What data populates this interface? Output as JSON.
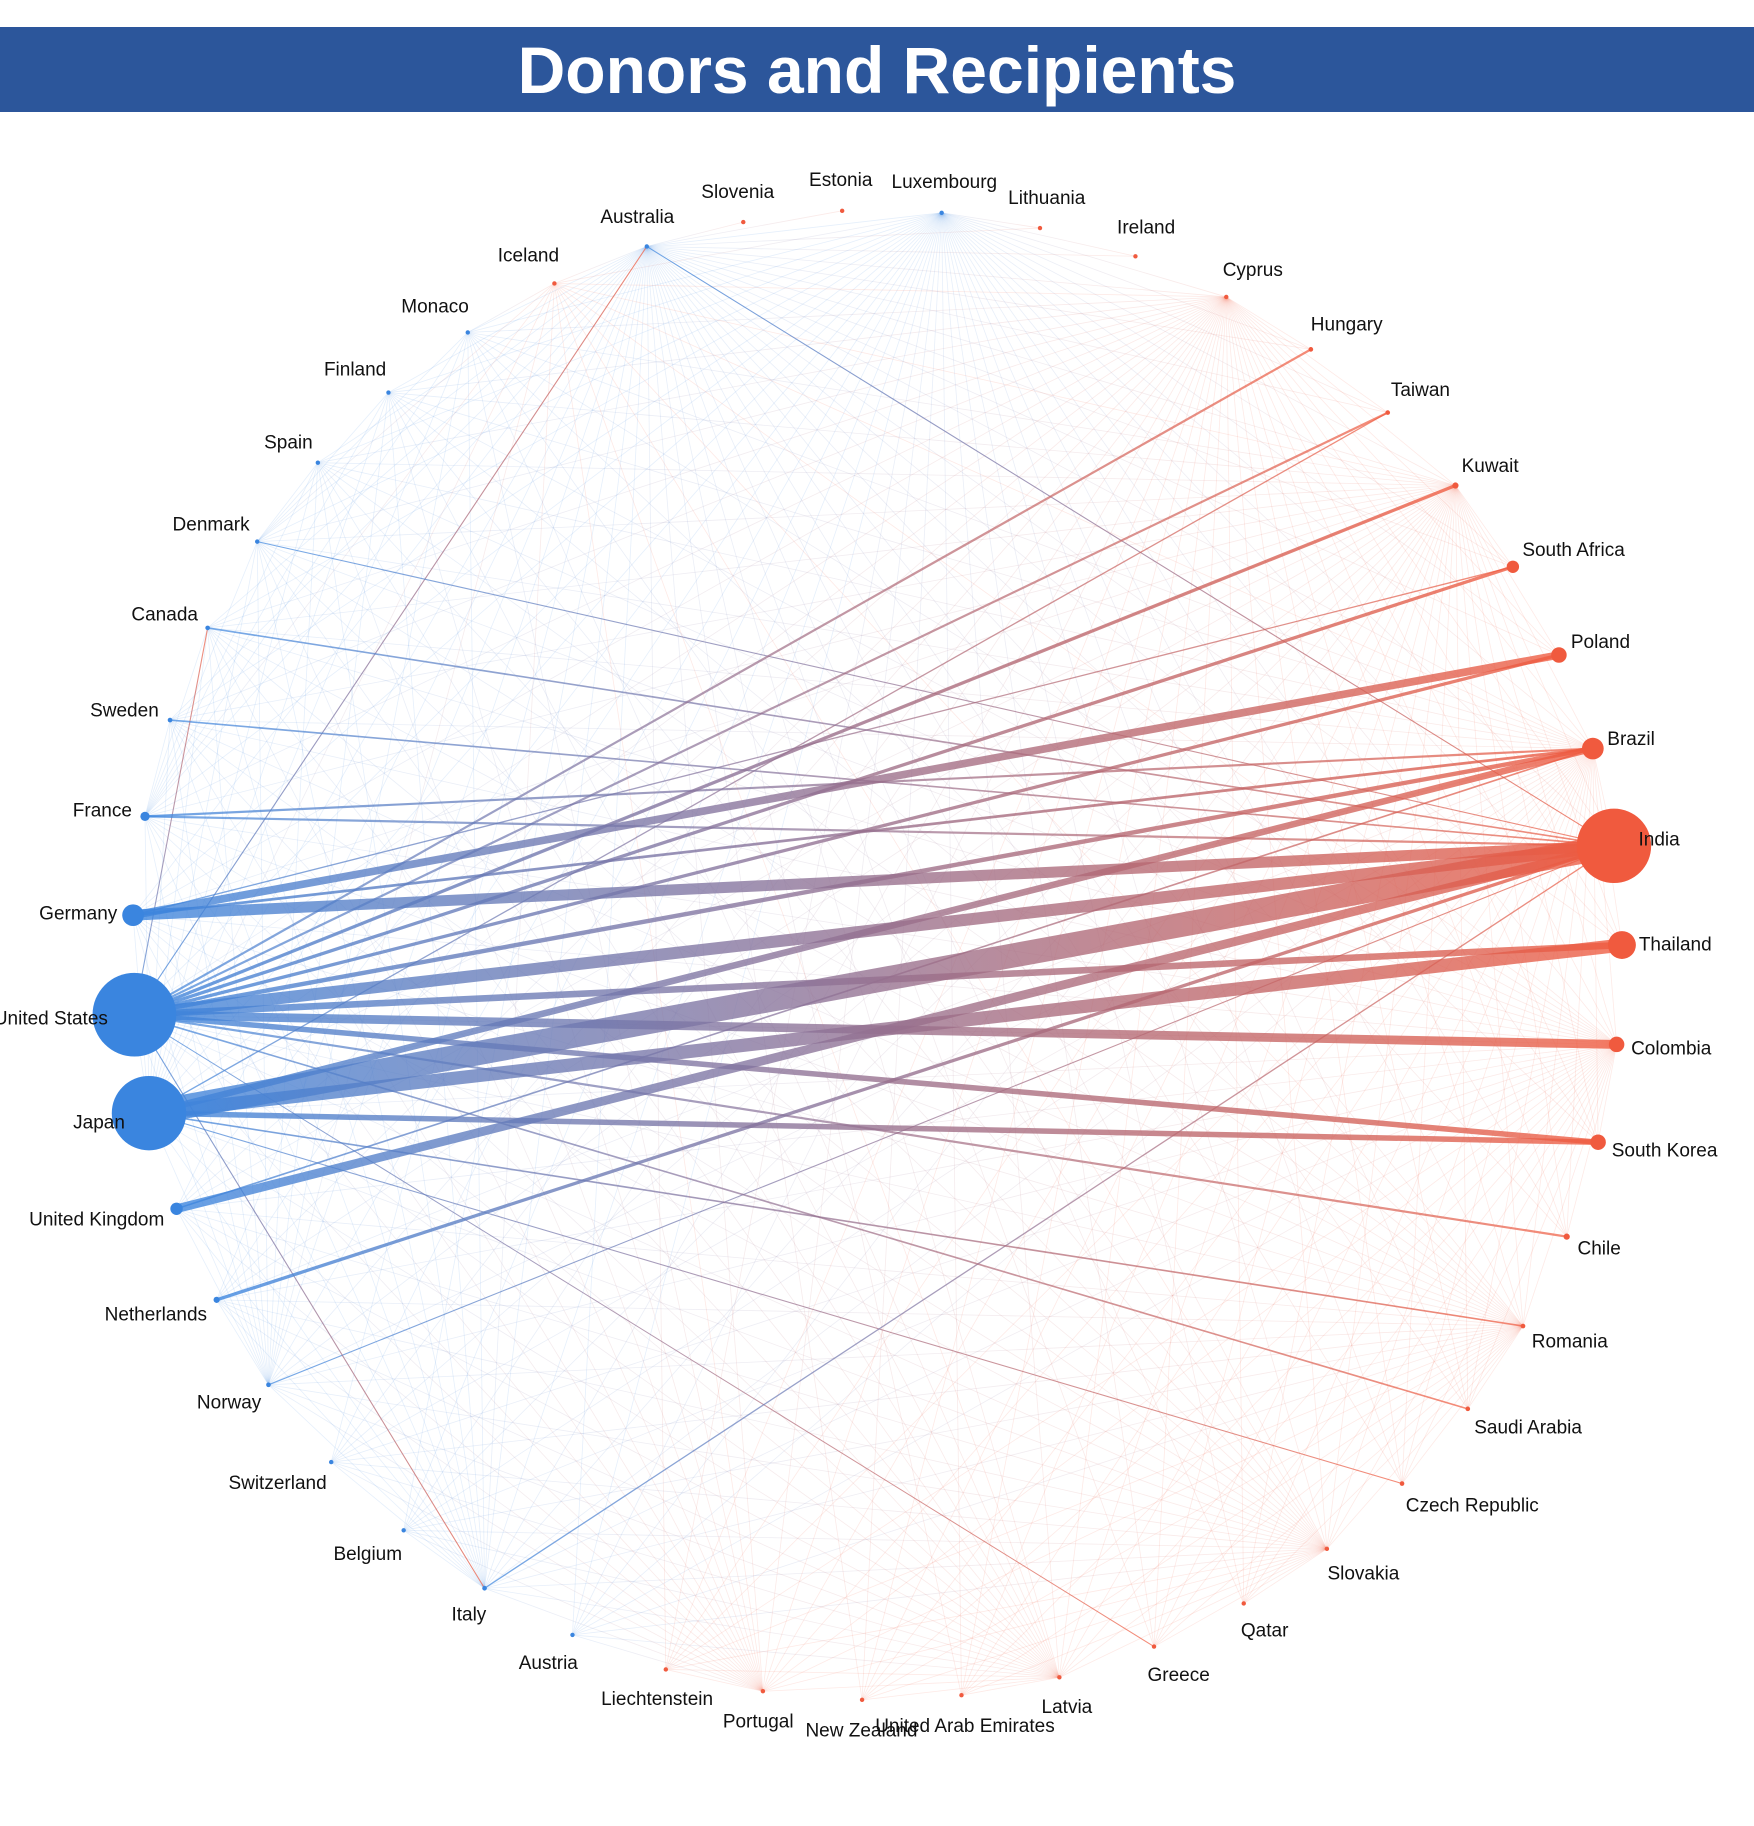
{
  "title": "Donors and Recipients",
  "colors": {
    "title_background": "#2c569b",
    "title_text": "#ffffff",
    "donor": "#3a85df",
    "recipient": "#f05a3e",
    "edge_mid": "#7f5f91"
  },
  "nodes": [
    {
      "id": "australia",
      "label": "Australia",
      "type": "donor",
      "size": 1
    },
    {
      "id": "slovenia",
      "label": "Slovenia",
      "type": "recipient",
      "size": 1
    },
    {
      "id": "estonia",
      "label": "Estonia",
      "type": "recipient",
      "size": 1
    },
    {
      "id": "luxembourg",
      "label": "Luxembourg",
      "type": "donor",
      "size": 1
    },
    {
      "id": "lithuania",
      "label": "Lithuania",
      "type": "recipient",
      "size": 1
    },
    {
      "id": "ireland",
      "label": "Ireland",
      "type": "recipient",
      "size": 1
    },
    {
      "id": "cyprus",
      "label": "Cyprus",
      "type": "recipient",
      "size": 1
    },
    {
      "id": "hungary",
      "label": "Hungary",
      "type": "recipient",
      "size": 1.5
    },
    {
      "id": "taiwan",
      "label": "Taiwan",
      "type": "recipient",
      "size": 1.5
    },
    {
      "id": "kuwait",
      "label": "Kuwait",
      "type": "recipient",
      "size": 2
    },
    {
      "id": "south_africa",
      "label": "South Africa",
      "type": "recipient",
      "size": 4
    },
    {
      "id": "poland",
      "label": "Poland",
      "type": "recipient",
      "size": 5
    },
    {
      "id": "brazil",
      "label": "Brazil",
      "type": "recipient",
      "size": 7
    },
    {
      "id": "india",
      "label": "India",
      "type": "recipient",
      "size": 24
    },
    {
      "id": "thailand",
      "label": "Thailand",
      "type": "recipient",
      "size": 9
    },
    {
      "id": "colombia",
      "label": "Colombia",
      "type": "recipient",
      "size": 5
    },
    {
      "id": "south_korea",
      "label": "South Korea",
      "type": "recipient",
      "size": 5
    },
    {
      "id": "chile",
      "label": "Chile",
      "type": "recipient",
      "size": 2
    },
    {
      "id": "romania",
      "label": "Romania",
      "type": "recipient",
      "size": 1.5
    },
    {
      "id": "saudi_arabia",
      "label": "Saudi Arabia",
      "type": "recipient",
      "size": 1.5
    },
    {
      "id": "czech_republic",
      "label": "Czech Republic",
      "type": "recipient",
      "size": 1.5
    },
    {
      "id": "slovakia",
      "label": "Slovakia",
      "type": "recipient",
      "size": 1
    },
    {
      "id": "qatar",
      "label": "Qatar",
      "type": "recipient",
      "size": 1
    },
    {
      "id": "greece",
      "label": "Greece",
      "type": "recipient",
      "size": 1
    },
    {
      "id": "latvia",
      "label": "Latvia",
      "type": "recipient",
      "size": 1
    },
    {
      "id": "uae",
      "label": "United Arab Emirates",
      "type": "recipient",
      "size": 1
    },
    {
      "id": "new_zealand",
      "label": "New Zealand",
      "type": "recipient",
      "size": 1
    },
    {
      "id": "portugal",
      "label": "Portugal",
      "type": "recipient",
      "size": 1
    },
    {
      "id": "liechtenstein",
      "label": "Liechtenstein",
      "type": "recipient",
      "size": 1
    },
    {
      "id": "austria",
      "label": "Austria",
      "type": "donor",
      "size": 1
    },
    {
      "id": "italy",
      "label": "Italy",
      "type": "donor",
      "size": 1.5
    },
    {
      "id": "belgium",
      "label": "Belgium",
      "type": "donor",
      "size": 1
    },
    {
      "id": "switzerland",
      "label": "Switzerland",
      "type": "donor",
      "size": 1
    },
    {
      "id": "norway",
      "label": "Norway",
      "type": "donor",
      "size": 1.5
    },
    {
      "id": "netherlands",
      "label": "Netherlands",
      "type": "donor",
      "size": 2
    },
    {
      "id": "united_kingdom",
      "label": "United Kingdom",
      "type": "donor",
      "size": 4
    },
    {
      "id": "japan",
      "label": "Japan",
      "type": "donor",
      "size": 24
    },
    {
      "id": "united_states",
      "label": "United States",
      "type": "donor",
      "size": 27
    },
    {
      "id": "germany",
      "label": "Germany",
      "type": "donor",
      "size": 7
    },
    {
      "id": "france",
      "label": "France",
      "type": "donor",
      "size": 3
    },
    {
      "id": "sweden",
      "label": "Sweden",
      "type": "donor",
      "size": 1.5
    },
    {
      "id": "canada",
      "label": "Canada",
      "type": "donor",
      "size": 1.5
    },
    {
      "id": "denmark",
      "label": "Denmark",
      "type": "donor",
      "size": 1
    },
    {
      "id": "spain",
      "label": "Spain",
      "type": "donor",
      "size": 1
    },
    {
      "id": "finland",
      "label": "Finland",
      "type": "donor",
      "size": 1
    },
    {
      "id": "monaco",
      "label": "Monaco",
      "type": "donor",
      "size": 0.5
    },
    {
      "id": "iceland",
      "label": "Iceland",
      "type": "recipient",
      "size": 0.5
    }
  ],
  "major_links": [
    {
      "from": "japan",
      "to": "india",
      "weight": 22
    },
    {
      "from": "united_states",
      "to": "india",
      "weight": 11
    },
    {
      "from": "united_states",
      "to": "colombia",
      "weight": 8
    },
    {
      "from": "united_states",
      "to": "thailand",
      "weight": 6
    },
    {
      "from": "japan",
      "to": "thailand",
      "weight": 12
    },
    {
      "from": "germany",
      "to": "india",
      "weight": 10
    },
    {
      "from": "germany",
      "to": "poland",
      "weight": 7
    },
    {
      "from": "united_kingdom",
      "to": "india",
      "weight": 8
    },
    {
      "from": "japan",
      "to": "brazil",
      "weight": 6
    },
    {
      "from": "japan",
      "to": "south_korea",
      "weight": 5
    },
    {
      "from": "united_states",
      "to": "south_korea",
      "weight": 5
    },
    {
      "from": "united_states",
      "to": "brazil",
      "weight": 4
    },
    {
      "from": "united_states",
      "to": "poland",
      "weight": 3
    },
    {
      "from": "united_states",
      "to": "kuwait",
      "weight": 3
    },
    {
      "from": "united_states",
      "to": "south_africa",
      "weight": 3
    },
    {
      "from": "netherlands",
      "to": "india",
      "weight": 3
    },
    {
      "from": "germany",
      "to": "brazil",
      "weight": 2.5
    },
    {
      "from": "united_states",
      "to": "hungary",
      "weight": 2
    },
    {
      "from": "united_states",
      "to": "taiwan",
      "weight": 2
    },
    {
      "from": "france",
      "to": "india",
      "weight": 2
    },
    {
      "from": "france",
      "to": "brazil",
      "weight": 2
    },
    {
      "from": "sweden",
      "to": "india",
      "weight": 1.5
    },
    {
      "from": "canada",
      "to": "india",
      "weight": 1.5
    },
    {
      "from": "united_states",
      "to": "chile",
      "weight": 2
    },
    {
      "from": "united_states",
      "to": "saudi_arabia",
      "weight": 1.5
    },
    {
      "from": "japan",
      "to": "romania",
      "weight": 1.5
    },
    {
      "from": "japan",
      "to": "taiwan",
      "weight": 1.2
    },
    {
      "from": "germany",
      "to": "south_africa",
      "weight": 1.2
    },
    {
      "from": "italy",
      "to": "india",
      "weight": 1.2
    },
    {
      "from": "norway",
      "to": "india",
      "weight": 1
    },
    {
      "from": "australia",
      "to": "india",
      "weight": 1
    },
    {
      "from": "united_states",
      "to": "australia",
      "weight": 1
    },
    {
      "from": "united_states",
      "to": "italy",
      "weight": 1
    },
    {
      "from": "united_states",
      "to": "canada",
      "weight": 1
    },
    {
      "from": "denmark",
      "to": "india",
      "weight": 1
    },
    {
      "from": "japan",
      "to": "czech_republic",
      "weight": 1
    },
    {
      "from": "united_states",
      "to": "greece",
      "weight": 0.8
    },
    {
      "from": "united_kingdom",
      "to": "brazil",
      "weight": 1.5
    }
  ]
}
